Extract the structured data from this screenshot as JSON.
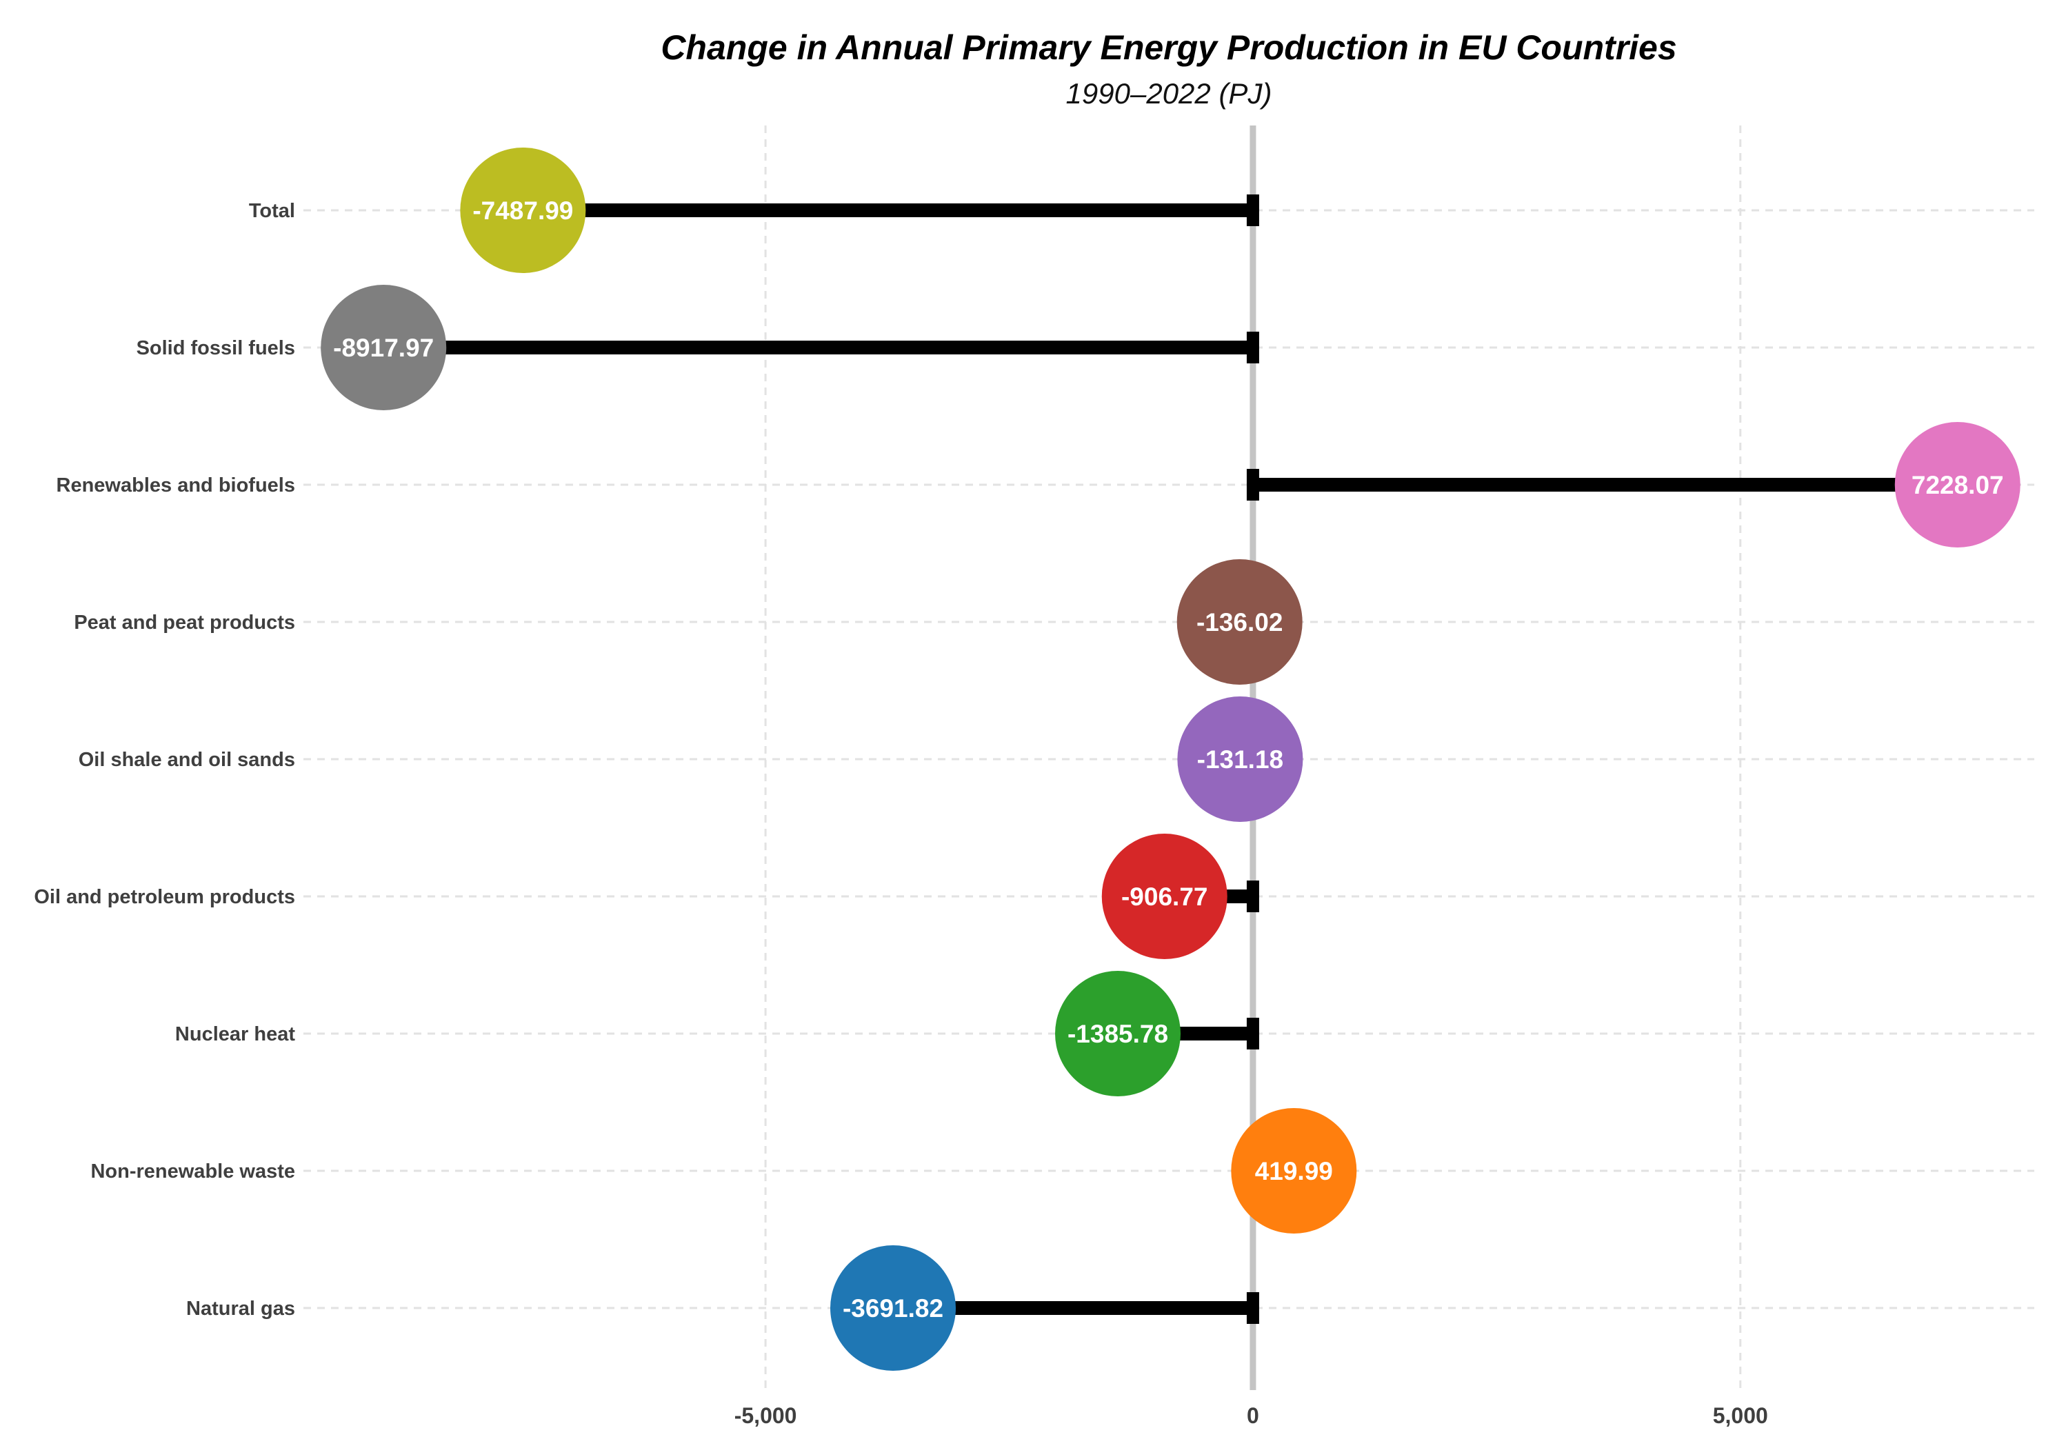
{
  "page": {
    "background": "#ffffff"
  },
  "chart_data": {
    "type": "bar",
    "variant": "horizontal-lollipop",
    "title": "Change in Annual Primary Energy Production in EU Countries",
    "subtitle": "1990–2022 (PJ)",
    "categories": [
      "Total",
      "Solid fossil fuels",
      "Renewables and biofuels",
      "Peat and peat products",
      "Oil shale and oil sands",
      "Oil and petroleum products",
      "Nuclear heat",
      "Non-renewable waste",
      "Natural gas"
    ],
    "values": [
      -7487.99,
      -8917.97,
      7228.07,
      -136.02,
      -131.18,
      -906.77,
      -1385.78,
      419.99,
      -3691.82
    ],
    "value_labels": [
      "-7487.99",
      "-8917.97",
      "7228.07",
      "-136.02",
      "-131.18",
      "-906.77",
      "-1385.78",
      "419.99",
      "-3691.82"
    ],
    "marker_colors": [
      "#bcbd22",
      "#7f7f7f",
      "#e377c2",
      "#8c564b",
      "#9467bd",
      "#d62728",
      "#2ca02c",
      "#ff7f0e",
      "#1f77b4"
    ],
    "xlabel": "",
    "ylabel": "",
    "xlim": [
      -9740,
      8015
    ],
    "x_ticks": [
      {
        "value": -5000,
        "label": "-5,000"
      },
      {
        "value": 0,
        "label": "0"
      },
      {
        "value": 5000,
        "label": "5,000"
      }
    ],
    "grid": {
      "horizontal_dashed_per_category": true,
      "vertical_dashed_at_ticks": true
    },
    "zero_line": true,
    "legend": false,
    "colors": {
      "stem": "#000000",
      "zero_line": "#c4c4c4",
      "grid": "#e2e2e2",
      "axis_label": "#3f3f3f",
      "value_text": "#ffffff",
      "title_text": "#000000"
    }
  }
}
